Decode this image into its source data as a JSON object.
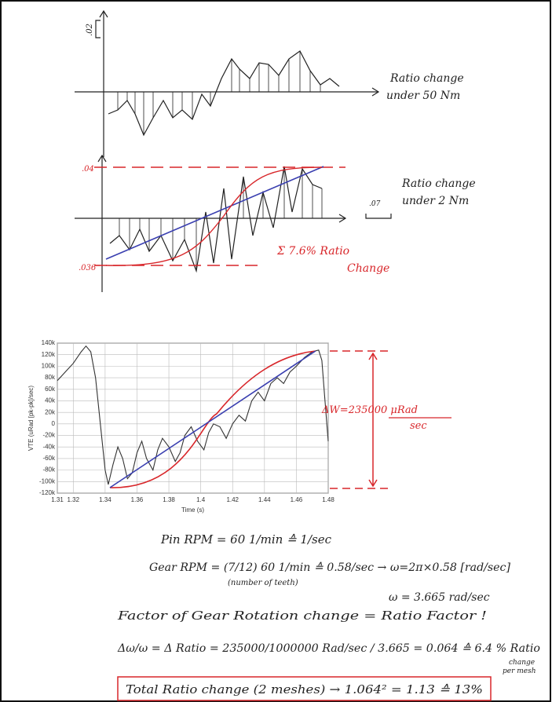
{
  "sketch_top": {
    "scale_label": ".02",
    "caption": [
      "Ratio change",
      "under 50 Nm"
    ]
  },
  "sketch_middle": {
    "upper_label": ".04",
    "lower_label": ".036",
    "scale_label": ".07",
    "caption": [
      "Ratio change",
      "under 2 Nm"
    ],
    "sum_note": [
      "Σ 7.6% Ratio",
      "Change"
    ]
  },
  "vte_chart": {
    "type": "line",
    "ylabel": "VTE (uRad [pk-pk]/sec)",
    "xlabel": "Time (s)",
    "xlim": [
      1.31,
      1.48
    ],
    "ylim": [
      -120000,
      140000
    ],
    "xticks": [
      1.31,
      1.32,
      1.34,
      1.36,
      1.38,
      1.4,
      1.42,
      1.44,
      1.46,
      1.48
    ],
    "yticks": [
      {
        "value": 140000,
        "label": "140k"
      },
      {
        "value": 120000,
        "label": "120k"
      },
      {
        "value": 100000,
        "label": "100k"
      },
      {
        "value": 80000,
        "label": "80k"
      },
      {
        "value": 60000,
        "label": "60k"
      },
      {
        "value": 40000,
        "label": "40k"
      },
      {
        "value": 20000,
        "label": "20k"
      },
      {
        "value": 0,
        "label": "0"
      },
      {
        "value": -20000,
        "label": "-20k"
      },
      {
        "value": -40000,
        "label": "-40k"
      },
      {
        "value": -60000,
        "label": "-60k"
      },
      {
        "value": -80000,
        "label": "-80k"
      },
      {
        "value": -100000,
        "label": "-100k"
      },
      {
        "value": -120000,
        "label": "-120k"
      }
    ],
    "grid": true,
    "color": "#333333",
    "x": [
      1.31,
      1.315,
      1.32,
      1.325,
      1.328,
      1.331,
      1.334,
      1.337,
      1.34,
      1.342,
      1.345,
      1.348,
      1.351,
      1.354,
      1.357,
      1.36,
      1.363,
      1.366,
      1.37,
      1.373,
      1.376,
      1.38,
      1.384,
      1.387,
      1.39,
      1.394,
      1.398,
      1.402,
      1.405,
      1.408,
      1.412,
      1.416,
      1.42,
      1.424,
      1.428,
      1.432,
      1.436,
      1.44,
      1.444,
      1.448,
      1.452,
      1.456,
      1.46,
      1.465,
      1.47,
      1.474,
      1.476,
      1.478,
      1.48
    ],
    "values": [
      75000,
      90000,
      105000,
      125000,
      135000,
      125000,
      80000,
      0,
      -80000,
      -105000,
      -70000,
      -40000,
      -60000,
      -95000,
      -85000,
      -50000,
      -30000,
      -60000,
      -80000,
      -45000,
      -25000,
      -40000,
      -65000,
      -50000,
      -20000,
      -5000,
      -30000,
      -45000,
      -15000,
      0,
      -5000,
      -25000,
      0,
      15000,
      5000,
      40000,
      55000,
      40000,
      70000,
      80000,
      70000,
      90000,
      100000,
      115000,
      125000,
      128000,
      110000,
      40000,
      -30000
    ],
    "annotation": [
      "ΔW=235000 μRad",
      "sec"
    ]
  },
  "notes": {
    "pin_rpm": "Pin RPM = 60 1/min ≙ 1/sec",
    "gear_rpm": "Gear RPM = (7/12) 60 1/min ≙ 0.58/sec → ω=2π×0.58 [rad/sec]",
    "teeth_note": "(number of teeth)",
    "omega": "ω = 3.665 rad/sec",
    "factor": "Factor of Gear Rotation change = Ratio Factor !",
    "delta": "Δω/ω = Δ Ratio = 235000/1000000 Rad/sec / 3.665 = 0.064 ≙ 6.4 % Ratio",
    "per_mesh": [
      "change",
      "per mesh"
    ],
    "total": "Total Ratio change (2 meshes) → 1.064² = 1.13 ≙ 13%"
  }
}
